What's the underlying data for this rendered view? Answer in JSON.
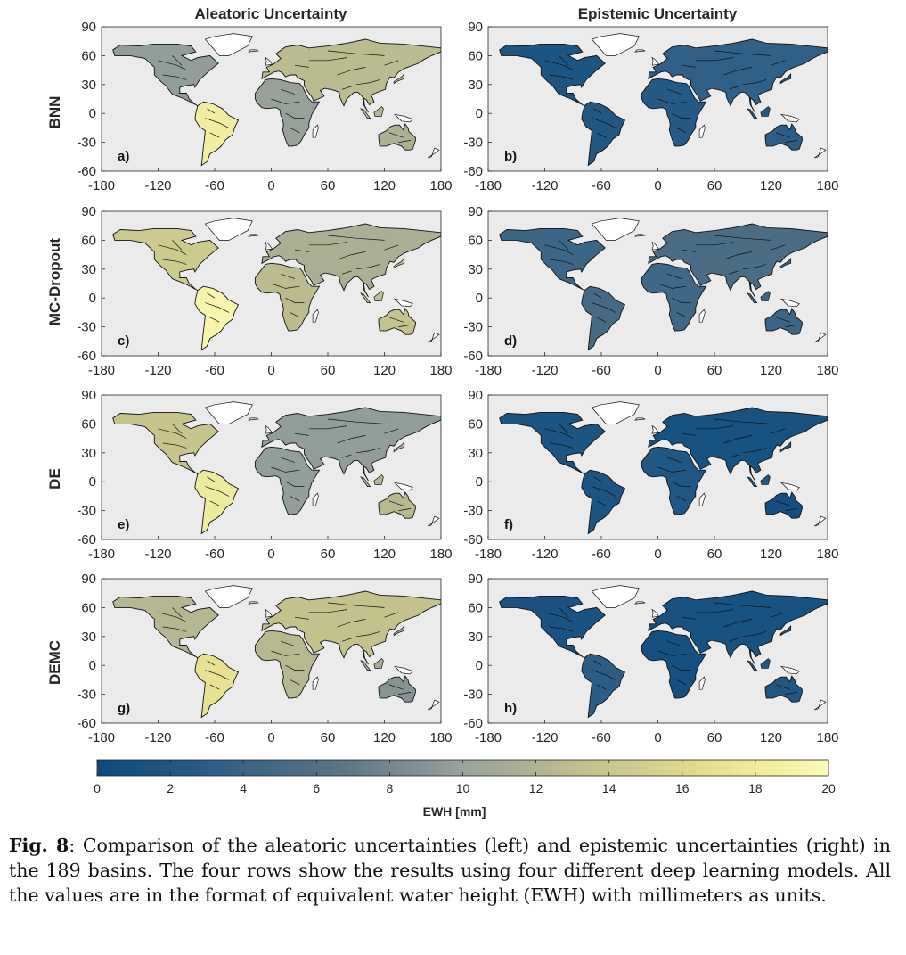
{
  "columns": [
    {
      "title": "Aleatoric Uncertainty"
    },
    {
      "title": "Epistemic Uncertainty"
    }
  ],
  "rows": [
    {
      "label": "BNN",
      "panels": [
        "a)",
        "b)"
      ],
      "aleatoric_tone": 0.62,
      "epistemic_tone": 0.12
    },
    {
      "label": "MC-Dropout",
      "panels": [
        "c)",
        "d)"
      ],
      "aleatoric_tone": 0.66,
      "epistemic_tone": 0.22
    },
    {
      "label": "DE",
      "panels": [
        "e)",
        "f)"
      ],
      "aleatoric_tone": 0.6,
      "epistemic_tone": 0.1
    },
    {
      "label": "DEMC",
      "panels": [
        "g)",
        "h)"
      ],
      "aleatoric_tone": 0.55,
      "epistemic_tone": 0.1
    }
  ],
  "axes": {
    "x_ticks": [
      "-180",
      "-120",
      "-60",
      "0",
      "60",
      "120",
      "180"
    ],
    "y_ticks": [
      "90",
      "60",
      "30",
      "0",
      "-30",
      "-60"
    ]
  },
  "colorbar": {
    "ticks": [
      "0",
      "2",
      "4",
      "6",
      "8",
      "10",
      "12",
      "14",
      "16",
      "18",
      "20"
    ],
    "label": "EWH [mm]",
    "stops": [
      "#0b4a7e",
      "#2e5f86",
      "#5a7585",
      "#98a29a",
      "#c2c08c",
      "#e3df8e",
      "#fdfcb4"
    ]
  },
  "caption": {
    "bold": "Fig. 8",
    "text": ": Comparison of the aleatoric uncertainties (left) and epistemic uncertainties (right) in the 189 basins. The four rows show the results using four different deep learning models. All the values are in the format of equivalent water height (EWH) with millimeters as units."
  }
}
